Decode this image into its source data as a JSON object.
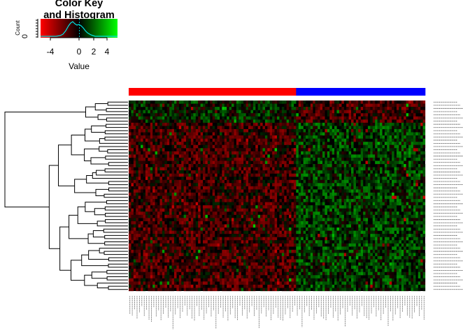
{
  "key": {
    "title_line1": "Color Key",
    "title_line2": "and Histogram",
    "xlabel": "Value",
    "ylabel": "Count",
    "ytick": "0",
    "xticks": [
      "-4",
      "0",
      "2",
      "4"
    ],
    "colors": {
      "low": "#ff0000",
      "mid": "#000000",
      "high": "#00ff00",
      "hist_line": "#00e5e5"
    }
  },
  "column_groups": [
    {
      "color": "#ff0000",
      "count": 70
    },
    {
      "color": "#0000ff",
      "count": 54
    }
  ],
  "chart_data": {
    "type": "heatmap",
    "title": "Color Key\nand Histogram",
    "value_range": [
      -6,
      6
    ],
    "colormap": [
      "#ff0000",
      "#000000",
      "#00ff00"
    ],
    "rows": 60,
    "columns": 124,
    "key_xticks": [
      -4,
      0,
      2,
      4
    ]
  }
}
